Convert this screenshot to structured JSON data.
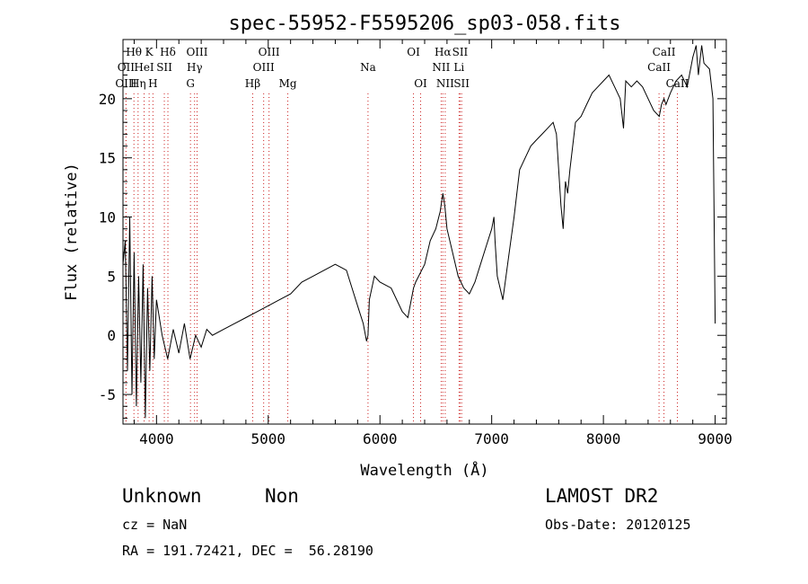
{
  "chart_data": {
    "type": "line",
    "title": "spec-55952-F5595206_sp03-058.fits",
    "xlabel": "Wavelength (Å)",
    "ylabel": "Flux (relative)",
    "xlim": [
      3700,
      9100
    ],
    "ylim": [
      -7.5,
      25
    ],
    "xticks": [
      4000,
      5000,
      6000,
      7000,
      8000,
      9000
    ],
    "yticks": [
      -5,
      0,
      5,
      10,
      15,
      20
    ],
    "grid": false,
    "series": [
      {
        "x": [
          3700,
          3720,
          3740,
          3760,
          3780,
          3800,
          3820,
          3840,
          3860,
          3880,
          3900,
          3920,
          3940,
          3960,
          3980,
          4000,
          4050,
          4100,
          4150,
          4200,
          4250,
          4300,
          4350,
          4400,
          4450,
          4500,
          4600,
          4700,
          4800,
          4900,
          5000,
          5100,
          5200,
          5300,
          5400,
          5500,
          5600,
          5700,
          5750,
          5800,
          5850,
          5880,
          5893,
          5905,
          5950,
          6000,
          6100,
          6200,
          6250,
          6300,
          6320,
          6400,
          6450,
          6500,
          6540,
          6563,
          6580,
          6600,
          6650,
          6700,
          6750,
          6800,
          6850,
          6900,
          6950,
          7000,
          7020,
          7030,
          7050,
          7100,
          7150,
          7200,
          7250,
          7300,
          7350,
          7400,
          7450,
          7500,
          7550,
          7580,
          7600,
          7620,
          7640,
          7660,
          7680,
          7700,
          7750,
          7800,
          7850,
          7900,
          7950,
          8000,
          8050,
          8100,
          8150,
          8180,
          8200,
          8250,
          8300,
          8350,
          8400,
          8450,
          8500,
          8520,
          8542,
          8560,
          8600,
          8650,
          8700,
          8750,
          8800,
          8830,
          8850,
          8880,
          8900,
          8950,
          8980,
          9000
        ],
        "y": [
          6,
          8,
          -3,
          10,
          -5,
          7,
          -6,
          5,
          -4,
          6,
          -7,
          4,
          -3,
          5,
          -2,
          3,
          0,
          -2,
          0.5,
          -1.5,
          1,
          -2,
          0,
          -1,
          0.5,
          0,
          0.5,
          1,
          1.5,
          2,
          2.5,
          3,
          3.5,
          4.5,
          5,
          5.5,
          6,
          5.5,
          4,
          2.5,
          1,
          -0.5,
          0,
          3,
          5,
          4.5,
          4,
          2,
          1.5,
          4,
          4.5,
          6,
          8,
          9,
          10.5,
          12,
          11,
          9,
          7,
          5,
          4,
          3.5,
          4.5,
          6,
          7.5,
          9,
          10,
          8,
          5,
          3,
          6.5,
          10,
          14,
          15,
          16,
          16.5,
          17,
          17.5,
          18,
          17,
          14,
          11,
          9,
          13,
          12,
          14,
          18,
          18.5,
          19.5,
          20.5,
          21,
          21.5,
          22,
          21,
          20,
          17.5,
          21.5,
          21,
          21.5,
          21,
          20,
          19,
          18.5,
          19.5,
          20,
          19.5,
          20.5,
          21.5,
          22,
          21,
          23.5,
          24.5,
          22,
          24.5,
          23,
          22.5,
          20,
          1
        ]
      }
    ],
    "lines": [
      {
        "label": "Hθ",
        "x": 3798,
        "row": 0
      },
      {
        "label": "K",
        "x": 3934,
        "row": 0
      },
      {
        "label": "Hδ",
        "x": 4102,
        "row": 0
      },
      {
        "label": "OIII",
        "x": 4363,
        "row": 0
      },
      {
        "label": "OIII",
        "x": 5007,
        "row": 0
      },
      {
        "label": "OI",
        "x": 6300,
        "row": 0
      },
      {
        "label": "Hα",
        "x": 6563,
        "row": 0
      },
      {
        "label": "SII",
        "x": 6717,
        "row": 0
      },
      {
        "label": "CaII",
        "x": 8542,
        "row": 0
      },
      {
        "label": "OII",
        "x": 3727,
        "row": 1
      },
      {
        "label": "HeI",
        "x": 3889,
        "row": 1
      },
      {
        "label": "SII",
        "x": 4070,
        "row": 1
      },
      {
        "label": "Hγ",
        "x": 4341,
        "row": 1
      },
      {
        "label": "OIII",
        "x": 4959,
        "row": 1
      },
      {
        "label": "Na",
        "x": 5893,
        "row": 1
      },
      {
        "label": "NII",
        "x": 6548,
        "row": 1
      },
      {
        "label": "Li",
        "x": 6708,
        "row": 1
      },
      {
        "label": "CaII",
        "x": 8498,
        "row": 1
      },
      {
        "label": "OIII",
        "x": 3727,
        "row": 2
      },
      {
        "label": "Hη",
        "x": 3835,
        "row": 2
      },
      {
        "label": "H",
        "x": 3968,
        "row": 2
      },
      {
        "label": "G",
        "x": 4304,
        "row": 2
      },
      {
        "label": "Hβ",
        "x": 4861,
        "row": 2
      },
      {
        "label": "Mg",
        "x": 5175,
        "row": 2
      },
      {
        "label": "OI",
        "x": 6364,
        "row": 2
      },
      {
        "label": "NII",
        "x": 6584,
        "row": 2
      },
      {
        "label": "SII",
        "x": 6731,
        "row": 2
      },
      {
        "label": "CaII",
        "x": 8662,
        "row": 2
      }
    ]
  },
  "info": {
    "class": "Unknown",
    "subclass": "Non",
    "survey": "LAMOST DR2",
    "cz": "cz = NaN",
    "obs_date": "Obs-Date: 20120125",
    "coords": "RA = 191.72421, DEC =  56.28190"
  },
  "colors": {
    "spectrum": "#000000",
    "line_markers": "#cc2222"
  }
}
